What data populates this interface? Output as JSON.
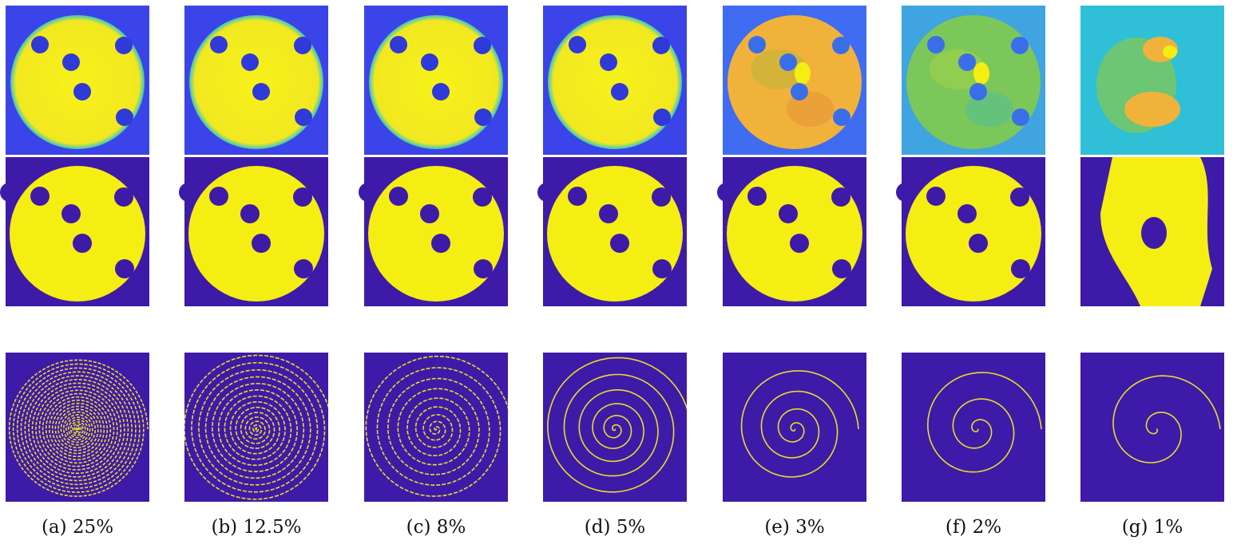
{
  "figure": {
    "captions": [
      "(a) 25%",
      "(b) 12.5%",
      "(c) 8%",
      "(d) 5%",
      "(e) 3%",
      "(f) 2%",
      "(g) 1%"
    ],
    "rows": [
      "reconstruction",
      "segmentation",
      "sampling-pattern"
    ],
    "colors": {
      "background_dark": "#3e1aa8",
      "background_blue": "#3b44e8",
      "yellow": "#f5ee12",
      "orange": "#f0b23a",
      "teal": "#2fb8c8",
      "green": "#7cc75a",
      "spiral": "#e8dc2a"
    }
  }
}
